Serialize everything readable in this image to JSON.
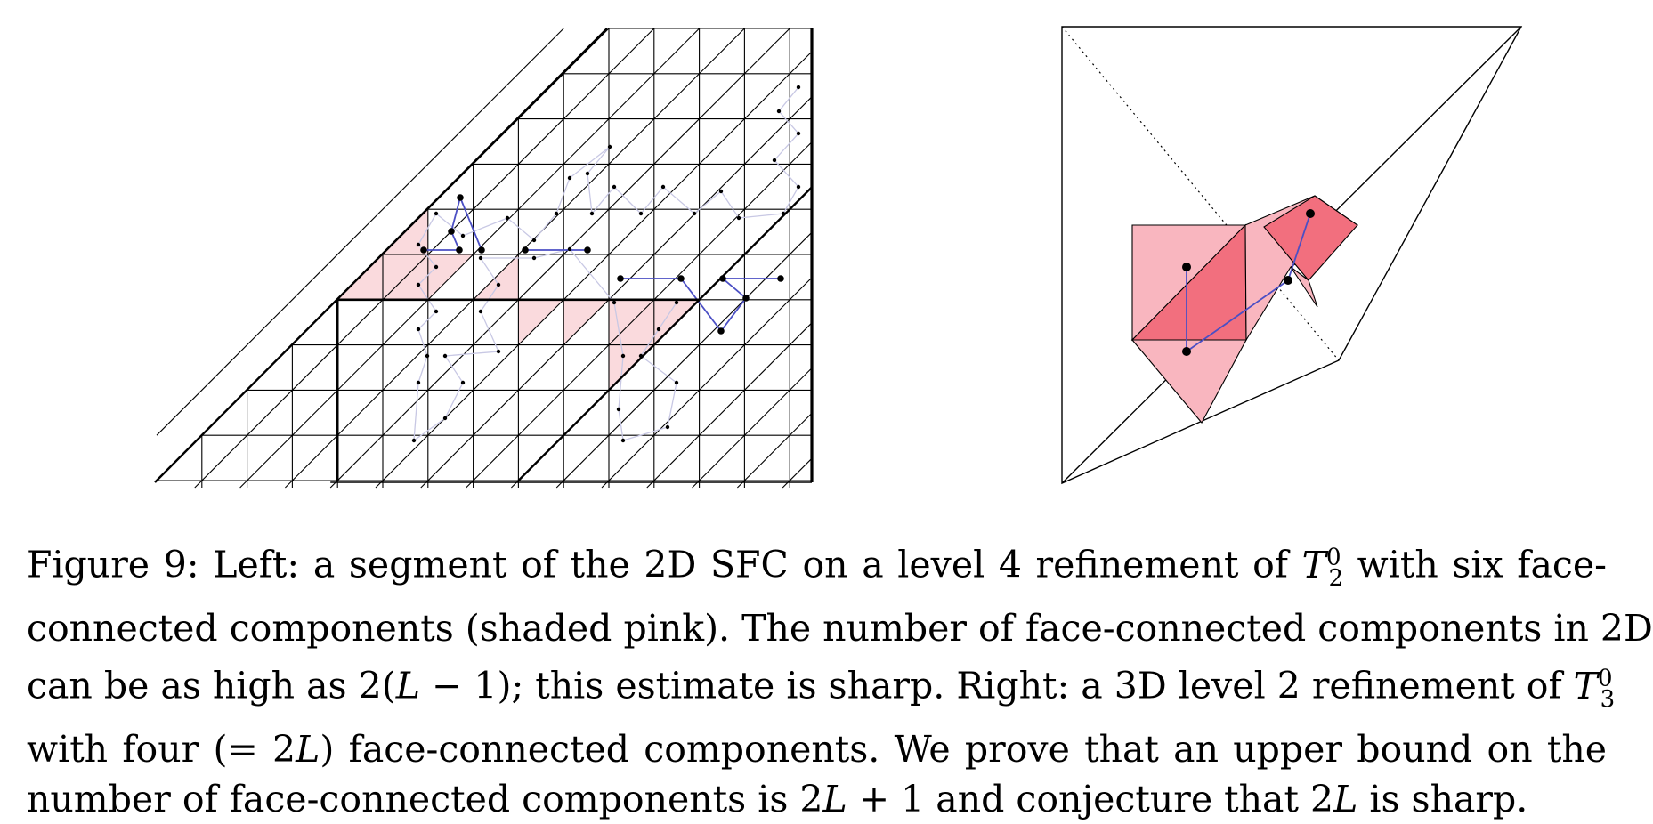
{
  "figure": {
    "caption": {
      "line1": {
        "a": "Figure 9: Left: a segment of the 2D SFC on a level 4 refinement of ",
        "m_base": "T",
        "m_sup": "0",
        "m_sub": "2",
        "b": " with six face-"
      },
      "line2": "connected components (shaded pink). The number of face-connected components in 2D",
      "line3": {
        "a": "can be as high as 2(",
        "m1": "L",
        "b": " − 1); this estimate is sharp. Right: a 3D level 2 refinement of ",
        "m_base": "T",
        "m_sup": "0",
        "m_sub": "3"
      },
      "line4": {
        "a": "with four (= 2",
        "m1": "L",
        "b": ") face-connected components. We prove that an upper bound on the"
      },
      "line5": {
        "a": "number of face-connected components is 2",
        "m1": "L",
        "b": " + 1 and conjecture that 2",
        "m2": "L",
        "c": " is sharp."
      }
    },
    "colors": {
      "pink_fill": "#fadadd",
      "pink_3d_light": "#f9b6bf",
      "pink_3d_dark": "#f26f7e",
      "curve_strong": "#4b4fc4",
      "curve_faint": "#c8c8e4",
      "edge": "#000000"
    },
    "left_panel": {
      "refinement_level": 4,
      "components": 6
    },
    "right_panel": {
      "refinement_level": 2,
      "components": 4
    }
  }
}
